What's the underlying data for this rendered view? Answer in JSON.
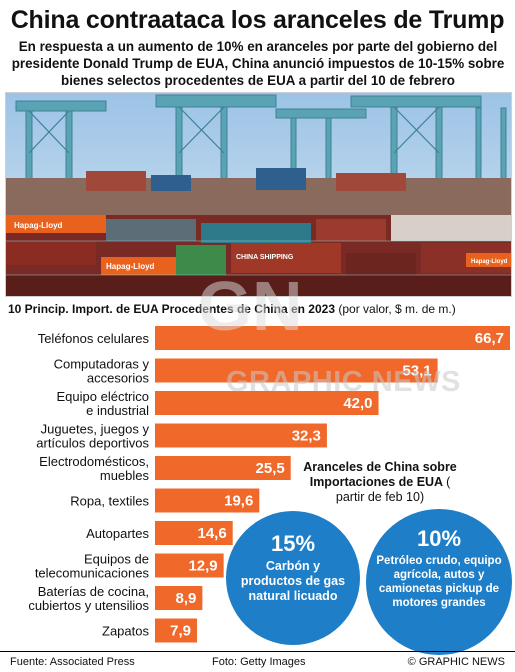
{
  "title": "China contraataca los aranceles de Trump",
  "subtitle": "En respuesta a un aumento de 10% en aranceles por parte del gobierno del presidente Donald Trump de EUA, China anunció impuestos de 10-15% sobre bienes selectos procedentes de EUA a partir del 10 de febrero",
  "photo": {
    "container_labels": [
      "Hapag-Lloyd",
      "CHINA SHIPPING",
      "Hapag-Lloyd",
      "Hapag-Lloyd"
    ]
  },
  "colors": {
    "bar": "#f0692a",
    "bubble": "#1e7ec8",
    "text": "#111111"
  },
  "chart_data": {
    "type": "bar",
    "orientation": "horizontal",
    "title": "10 Princip. Import. de EUA Procedentes de China en 2023",
    "unit_note": "(por valor, $ m. de m.)",
    "categories": [
      "Teléfonos celulares",
      "Computadoras y accesorios",
      "Equipo eléctrico e industrial",
      "Juguetes, juegos y artículos deportivos",
      "Electrodomésticos, muebles",
      "Ropa, textiles",
      "Autopartes",
      "Equipos de telecomunicaciones",
      "Baterías de cocina, cubiertos y utensilios",
      "Zapatos"
    ],
    "label_lines": [
      [
        "Teléfonos celulares"
      ],
      [
        "Computadoras y",
        "accesorios"
      ],
      [
        "Equipo eléctrico",
        "e industrial"
      ],
      [
        "Juguetes, juegos y",
        "artículos deportivos"
      ],
      [
        "Electrodomésticos,",
        "muebles"
      ],
      [
        "Ropa, textiles"
      ],
      [
        "Autopartes"
      ],
      [
        "Equipos de",
        "telecomunicaciones"
      ],
      [
        "Baterías de cocina,",
        "cubiertos y utensilios"
      ],
      [
        "Zapatos"
      ]
    ],
    "values": [
      66.7,
      53.1,
      42.0,
      32.3,
      25.5,
      19.6,
      14.6,
      12.9,
      8.9,
      7.9
    ],
    "value_labels": [
      "66,7",
      "53,1",
      "42,0",
      "32,3",
      "25,5",
      "19,6",
      "14,6",
      "12,9",
      "8,9",
      "7,9"
    ]
  },
  "tariffs": {
    "title": "Aranceles de China sobre Importaciones de EUA",
    "note": "( partir de feb 10)",
    "items": [
      {
        "pct": "15%",
        "desc": "Carbón y productos de gas natural licuado"
      },
      {
        "pct": "10%",
        "desc": "Petróleo crudo, equipo agrícola, autos y camionetas pickup de motores grandes"
      }
    ]
  },
  "watermark": {
    "logo": "GN",
    "text": "GRAPHIC NEWS"
  },
  "footer": {
    "source": "Fuente: Associated Press",
    "photo": "Foto: Getty Images",
    "credit": "© GRAPHIC NEWS"
  }
}
